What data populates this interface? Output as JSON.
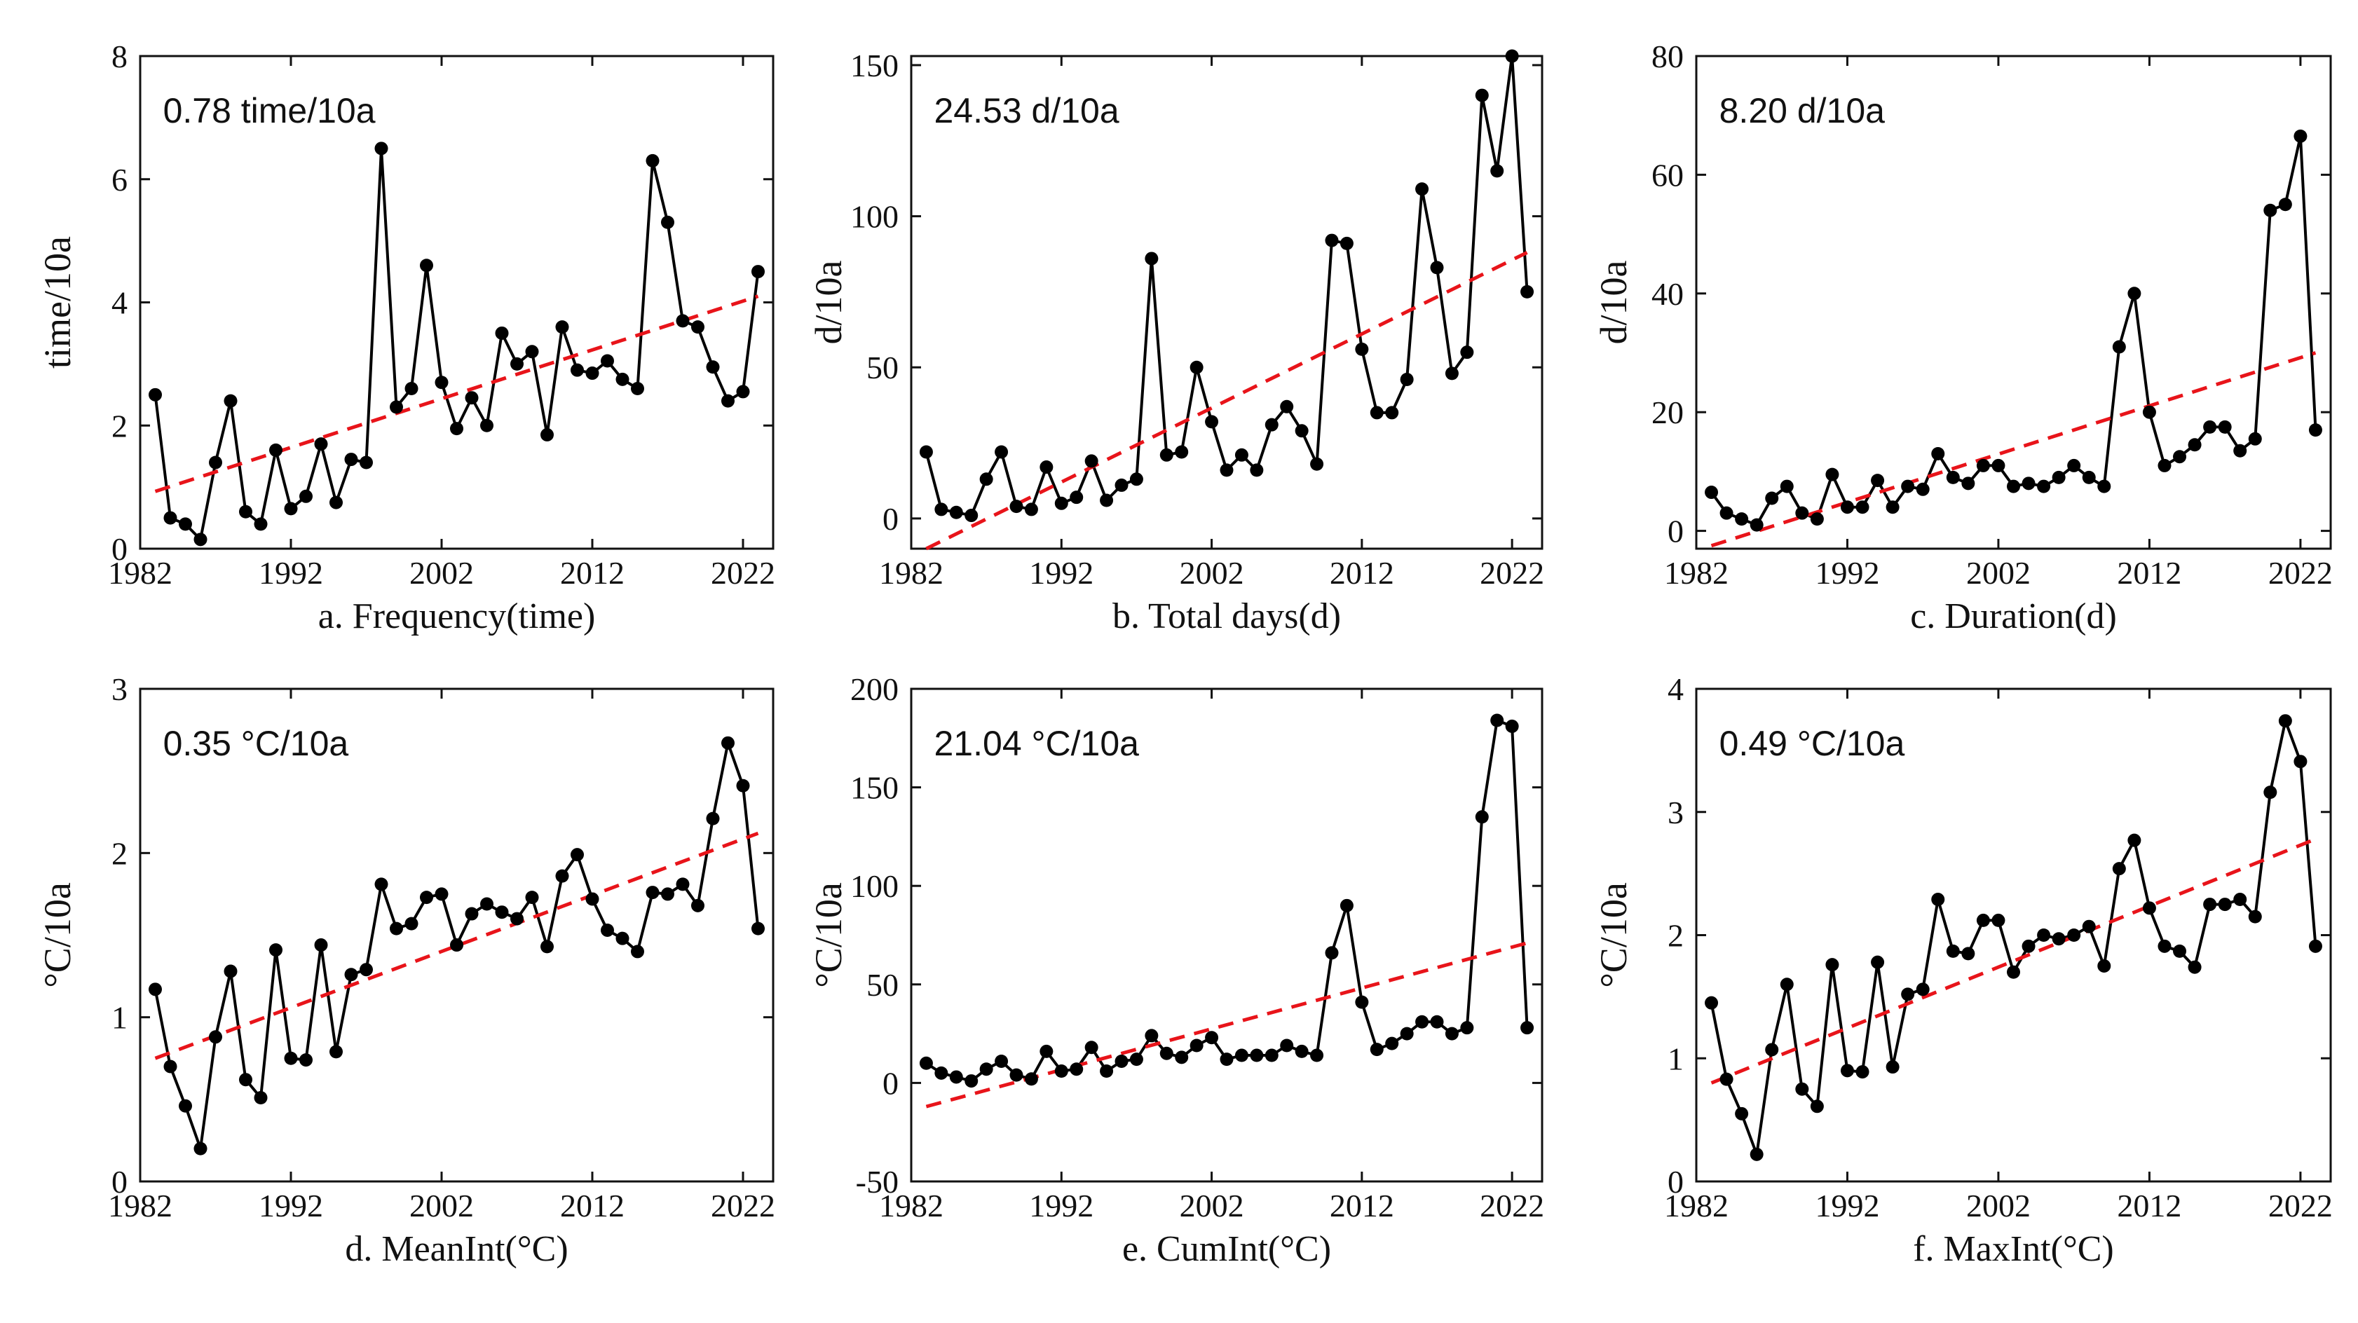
{
  "colors": {
    "series": "#000000",
    "trend": "#e8141a",
    "axes": "#111111"
  },
  "chart_data": [
    {
      "type": "line",
      "ylabel": "time/10a",
      "xlabel": "a. Frequency(time)",
      "annotation": "0.78 time/10a",
      "xlim": [
        1982,
        2024
      ],
      "ylim": [
        0,
        8
      ],
      "xticks": [
        1982,
        1992,
        2002,
        2012,
        2022
      ],
      "yticks": [
        0,
        2,
        4,
        6,
        8
      ],
      "x": [
        1983,
        1984,
        1985,
        1986,
        1987,
        1988,
        1989,
        1990,
        1991,
        1992,
        1993,
        1994,
        1995,
        1996,
        1997,
        1998,
        1999,
        2000,
        2001,
        2002,
        2003,
        2004,
        2005,
        2006,
        2007,
        2008,
        2009,
        2010,
        2011,
        2012,
        2013,
        2014,
        2015,
        2016,
        2017,
        2018,
        2019,
        2020,
        2021,
        2022,
        2023
      ],
      "values": [
        2.5,
        0.5,
        0.4,
        0.15,
        1.4,
        2.4,
        0.6,
        0.4,
        1.6,
        0.65,
        0.85,
        1.7,
        0.75,
        1.45,
        1.4,
        6.5,
        2.3,
        2.6,
        4.6,
        2.7,
        1.95,
        2.45,
        2.0,
        3.5,
        3.0,
        3.2,
        1.85,
        3.6,
        2.9,
        2.85,
        3.05,
        2.75,
        2.6,
        6.3,
        5.3,
        3.7,
        3.6,
        2.95,
        2.4,
        2.55,
        4.5
      ],
      "trend": {
        "x": [
          1983,
          2023
        ],
        "y": [
          0.93,
          4.1
        ]
      }
    },
    {
      "type": "line",
      "ylabel": "d/10a",
      "xlabel": "b. Total days(d)",
      "annotation": "24.53 d/10a",
      "xlim": [
        1982,
        2024
      ],
      "ylim": [
        -10,
        153
      ],
      "xticks": [
        1982,
        1992,
        2002,
        2012,
        2022
      ],
      "yticks": [
        0,
        50,
        100,
        150
      ],
      "x": [
        1983,
        1984,
        1985,
        1986,
        1987,
        1988,
        1989,
        1990,
        1991,
        1992,
        1993,
        1994,
        1995,
        1996,
        1997,
        1998,
        1999,
        2000,
        2001,
        2002,
        2003,
        2004,
        2005,
        2006,
        2007,
        2008,
        2009,
        2010,
        2011,
        2012,
        2013,
        2014,
        2015,
        2016,
        2017,
        2018,
        2019,
        2020,
        2021,
        2022,
        2023
      ],
      "values": [
        22,
        3,
        2,
        1,
        13,
        22,
        4,
        3,
        17,
        5,
        7,
        19,
        6,
        11,
        13,
        86,
        21,
        22,
        50,
        32,
        16,
        21,
        16,
        31,
        37,
        29,
        18,
        92,
        91,
        56,
        35,
        35,
        46,
        109,
        83,
        48,
        55,
        140,
        115,
        153,
        75
      ],
      "trend": {
        "x": [
          1983,
          2023
        ],
        "y": [
          -10,
          88
        ]
      }
    },
    {
      "type": "line",
      "ylabel": "d/10a",
      "xlabel": "c. Duration(d)",
      "annotation": "8.20 d/10a",
      "xlim": [
        1982,
        2024
      ],
      "ylim": [
        -3,
        80
      ],
      "xticks": [
        1982,
        1992,
        2002,
        2012,
        2022
      ],
      "yticks": [
        0,
        20,
        40,
        60,
        80
      ],
      "x": [
        1983,
        1984,
        1985,
        1986,
        1987,
        1988,
        1989,
        1990,
        1991,
        1992,
        1993,
        1994,
        1995,
        1996,
        1997,
        1998,
        1999,
        2000,
        2001,
        2002,
        2003,
        2004,
        2005,
        2006,
        2007,
        2008,
        2009,
        2010,
        2011,
        2012,
        2013,
        2014,
        2015,
        2016,
        2017,
        2018,
        2019,
        2020,
        2021,
        2022,
        2023
      ],
      "values": [
        6.5,
        3,
        2,
        1,
        5.5,
        7.5,
        3,
        2,
        9.5,
        4,
        4,
        8.5,
        4,
        7.5,
        7,
        13,
        9,
        8,
        11,
        11,
        7.5,
        8,
        7.5,
        9,
        11,
        9,
        7.5,
        31,
        40,
        20,
        11,
        12.5,
        14.5,
        17.5,
        17.5,
        13.5,
        15.5,
        54,
        55,
        66.5,
        17
      ],
      "trend": {
        "x": [
          1983,
          2023
        ],
        "y": [
          -2.5,
          30
        ]
      }
    },
    {
      "type": "line",
      "ylabel": "°C/10a",
      "xlabel": "d. MeanInt(°C)",
      "annotation": "0.35 °C/10a",
      "xlim": [
        1982,
        2024
      ],
      "ylim": [
        0,
        3
      ],
      "xticks": [
        1982,
        1992,
        2002,
        2012,
        2022
      ],
      "yticks": [
        0,
        1,
        2,
        3
      ],
      "x": [
        1983,
        1984,
        1985,
        1986,
        1987,
        1988,
        1989,
        1990,
        1991,
        1992,
        1993,
        1994,
        1995,
        1996,
        1997,
        1998,
        1999,
        2000,
        2001,
        2002,
        2003,
        2004,
        2005,
        2006,
        2007,
        2008,
        2009,
        2010,
        2011,
        2012,
        2013,
        2014,
        2015,
        2016,
        2017,
        2018,
        2019,
        2020,
        2021,
        2022,
        2023
      ],
      "values": [
        1.17,
        0.7,
        0.46,
        0.2,
        0.88,
        1.28,
        0.62,
        0.51,
        1.41,
        0.75,
        0.74,
        1.44,
        0.79,
        1.26,
        1.29,
        1.81,
        1.54,
        1.57,
        1.73,
        1.75,
        1.44,
        1.63,
        1.69,
        1.64,
        1.6,
        1.73,
        1.43,
        1.86,
        1.99,
        1.72,
        1.53,
        1.48,
        1.4,
        1.76,
        1.75,
        1.81,
        1.68,
        2.21,
        2.67,
        2.41,
        1.54
      ],
      "trend": {
        "x": [
          1983,
          2023
        ],
        "y": [
          0.75,
          2.12
        ]
      }
    },
    {
      "type": "line",
      "ylabel": "°C/10a",
      "xlabel": "e. CumInt(°C)",
      "annotation": "21.04 °C/10a",
      "xlim": [
        1982,
        2024
      ],
      "ylim": [
        -50,
        200
      ],
      "xticks": [
        1982,
        1992,
        2002,
        2012,
        2022
      ],
      "yticks": [
        -50,
        0,
        50,
        100,
        150,
        200
      ],
      "x": [
        1983,
        1984,
        1985,
        1986,
        1987,
        1988,
        1989,
        1990,
        1991,
        1992,
        1993,
        1994,
        1995,
        1996,
        1997,
        1998,
        1999,
        2000,
        2001,
        2002,
        2003,
        2004,
        2005,
        2006,
        2007,
        2008,
        2009,
        2010,
        2011,
        2012,
        2013,
        2014,
        2015,
        2016,
        2017,
        2018,
        2019,
        2020,
        2021,
        2022,
        2023
      ],
      "values": [
        10,
        5,
        3,
        1,
        7,
        11,
        4,
        2,
        16,
        6,
        7,
        18,
        6,
        11,
        12,
        24,
        15,
        13,
        19,
        23,
        12,
        14,
        14,
        14,
        19,
        16,
        14,
        66,
        90,
        41,
        17,
        20,
        25,
        31,
        31,
        25,
        28,
        135,
        184,
        181,
        28
      ],
      "trend": {
        "x": [
          1983,
          2023
        ],
        "y": [
          -12,
          71
        ]
      }
    },
    {
      "type": "line",
      "ylabel": "°C/10a",
      "xlabel": "f. MaxInt(°C)",
      "annotation": "0.49 °C/10a",
      "xlim": [
        1982,
        2024
      ],
      "ylim": [
        0,
        4
      ],
      "xticks": [
        1982,
        1992,
        2002,
        2012,
        2022
      ],
      "yticks": [
        0,
        1,
        2,
        3,
        4
      ],
      "x": [
        1983,
        1984,
        1985,
        1986,
        1987,
        1988,
        1989,
        1990,
        1991,
        1992,
        1993,
        1994,
        1995,
        1996,
        1997,
        1998,
        1999,
        2000,
        2001,
        2002,
        2003,
        2004,
        2005,
        2006,
        2007,
        2008,
        2009,
        2010,
        2011,
        2012,
        2013,
        2014,
        2015,
        2016,
        2017,
        2018,
        2019,
        2020,
        2021,
        2022,
        2023
      ],
      "values": [
        1.45,
        0.83,
        0.55,
        0.22,
        1.07,
        1.6,
        0.75,
        0.61,
        1.76,
        0.9,
        0.89,
        1.78,
        0.93,
        1.52,
        1.56,
        2.29,
        1.87,
        1.85,
        2.12,
        2.12,
        1.7,
        1.91,
        2.0,
        1.97,
        2.0,
        2.07,
        1.75,
        2.54,
        2.77,
        2.22,
        1.91,
        1.87,
        1.74,
        2.25,
        2.25,
        2.29,
        2.15,
        3.16,
        3.74,
        3.41,
        1.91
      ],
      "trend": {
        "x": [
          1983,
          2023
        ],
        "y": [
          0.8,
          2.78
        ]
      }
    }
  ]
}
